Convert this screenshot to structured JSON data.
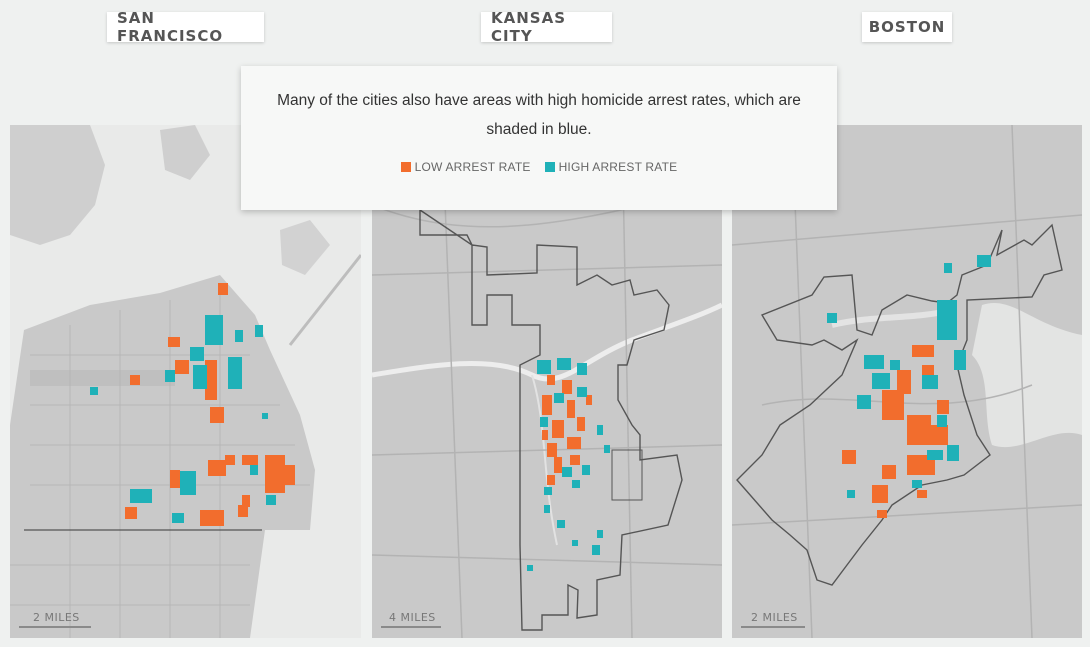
{
  "cities": [
    {
      "name": "SAN FRANCISCO",
      "scale_label": "2 MILES"
    },
    {
      "name": "KANSAS CITY",
      "scale_label": "4 MILES"
    },
    {
      "name": "BOSTON",
      "scale_label": "2 MILES"
    }
  ],
  "callout": {
    "text": "Many of the cities also have areas with high homicide arrest rates, which are shaded in blue."
  },
  "legend": {
    "low_label": "LOW ARREST RATE",
    "high_label": "HIGH ARREST RATE",
    "low_color": "#f26d2d",
    "high_color": "#1fb1b8"
  },
  "colors": {
    "land": "#c9c9c9",
    "water": "#e9eae9",
    "road": "#b3b3b3",
    "boundary": "#555555"
  }
}
